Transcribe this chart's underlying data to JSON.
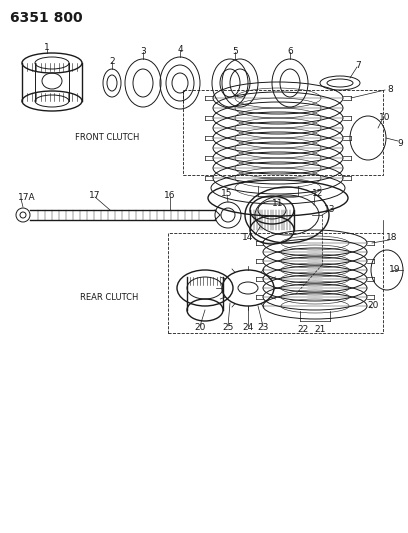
{
  "title": "6351 800",
  "background_color": "#ffffff",
  "line_color": "#1a1a1a",
  "title_fontsize": 10,
  "label_fontsize": 6.5,
  "section_label_fontsize": 6,
  "front_clutch_label": "FRONT CLUTCH",
  "rear_clutch_label": "REAR CLUTCH"
}
